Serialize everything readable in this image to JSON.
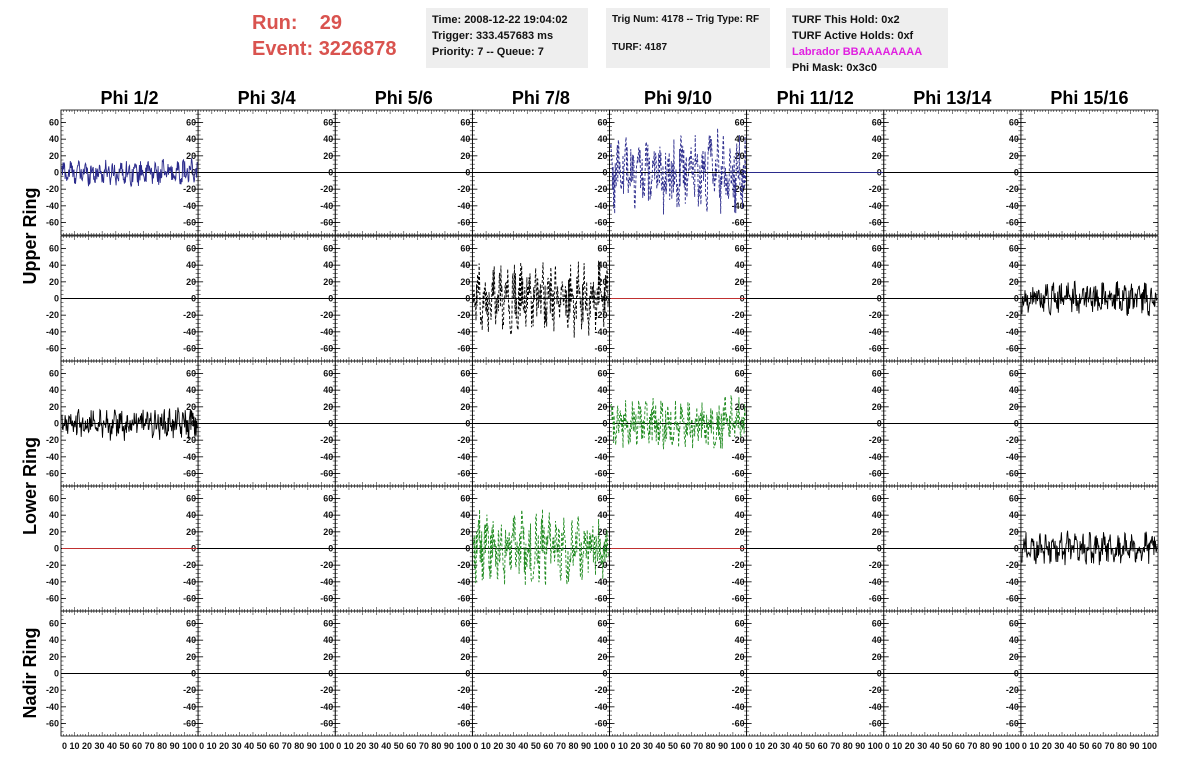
{
  "header": {
    "run_label": "Run:",
    "run_value": "29",
    "event_label": "Event:",
    "event_value": "3226878"
  },
  "info_time": {
    "time": "Time: 2008-12-22 19:04:02",
    "trigger": "Trigger: 333.457683 ms",
    "priority": "Priority: 7 -- Queue: 7"
  },
  "info_trig": {
    "trig": "Trig Num: 4178 -- Trig Type: RF",
    "turf": "TURF: 4187"
  },
  "info_turf": {
    "this_hold": "TURF This Hold: 0x2",
    "active_holds": "TURF Active Holds: 0xf",
    "labrador": "Labrador BBAAAAAAAA",
    "phi_mask": "Phi Mask: 0x3c0"
  },
  "colors": {
    "blue": "#2b2b8c",
    "black": "#000000",
    "green": "#1e8a1e",
    "red": "#c03030",
    "header_red": "#d9534f",
    "magenta": "#e020e0"
  },
  "chart_data": {
    "type": "line",
    "columns": [
      "Phi 1/2",
      "Phi 3/4",
      "Phi 5/6",
      "Phi 7/8",
      "Phi 9/10",
      "Phi 11/12",
      "Phi 13/14",
      "Phi 15/16"
    ],
    "row_groups": [
      "Upper Ring",
      "Lower Ring",
      "Nadir Ring"
    ],
    "ylim": [
      -75,
      75
    ],
    "xlim": [
      0,
      100
    ],
    "y_ticks": [
      -60,
      -40,
      -20,
      0,
      20,
      40,
      60
    ],
    "x_tick_labels": "0 10 20 30 40 50 60 70 80 90 100",
    "panels": [
      {
        "row": 0,
        "col": 0,
        "color": "blue",
        "style": "solid",
        "amplitude": 14
      },
      {
        "row": 0,
        "col": 4,
        "color": "blue",
        "style": "dashed",
        "amplitude": 45
      },
      {
        "row": 0,
        "col": 5,
        "color": "blue",
        "style": "solid",
        "amplitude": 0
      },
      {
        "row": 1,
        "col": 3,
        "color": "black",
        "style": "dashed",
        "amplitude": 40
      },
      {
        "row": 1,
        "col": 4,
        "color": "red",
        "style": "solid",
        "amplitude": 0
      },
      {
        "row": 1,
        "col": 7,
        "color": "black",
        "style": "solid",
        "amplitude": 18
      },
      {
        "row": 2,
        "col": 0,
        "color": "black",
        "style": "solid",
        "amplitude": 18
      },
      {
        "row": 2,
        "col": 4,
        "color": "green",
        "style": "dashed",
        "amplitude": 30
      },
      {
        "row": 3,
        "col": 0,
        "color": "red",
        "style": "solid",
        "amplitude": 0
      },
      {
        "row": 3,
        "col": 3,
        "color": "green",
        "style": "dashed",
        "amplitude": 40
      },
      {
        "row": 3,
        "col": 4,
        "color": "red",
        "style": "solid",
        "amplitude": 0
      },
      {
        "row": 3,
        "col": 7,
        "color": "black",
        "style": "solid",
        "amplitude": 18
      }
    ]
  }
}
